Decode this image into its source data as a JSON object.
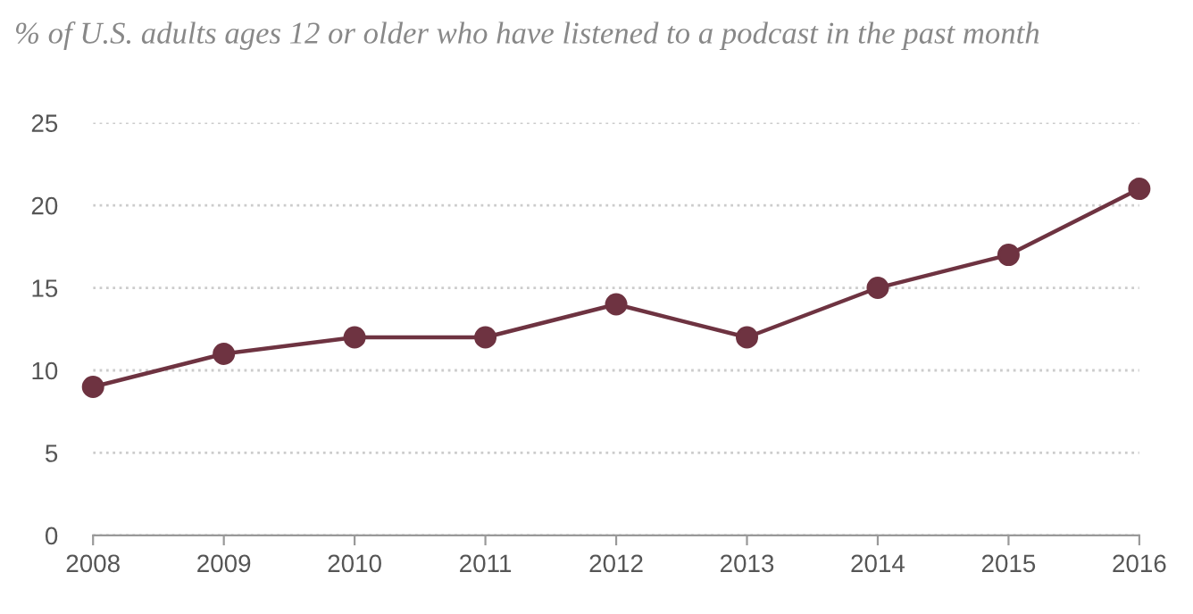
{
  "chart_data": {
    "type": "line",
    "title": "% of U.S. adults ages 12 or older who have listened to a podcast in the past month",
    "x": [
      2008,
      2009,
      2010,
      2011,
      2012,
      2013,
      2014,
      2015,
      2016
    ],
    "series": [
      {
        "color": "#6e3341",
        "values": [
          9,
          11,
          12,
          12,
          14,
          12,
          15,
          17,
          21
        ]
      }
    ],
    "xlim": [
      2008,
      2016
    ],
    "xticks": [
      2008,
      2009,
      2010,
      2011,
      2012,
      2013,
      2014,
      2015,
      2016
    ],
    "ylim": [
      0,
      25
    ],
    "yticks": [
      0,
      5,
      10,
      15,
      20,
      25
    ],
    "grid": "y",
    "marker": "circle",
    "line_style": "solid",
    "legend": false
  }
}
